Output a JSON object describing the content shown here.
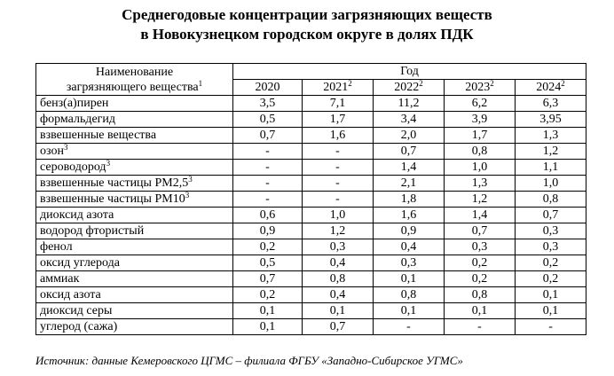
{
  "title": {
    "line1": "Среднегодовые концентрации загрязняющих веществ",
    "line2": "в Новокузнецком городском округе в долях ПДК"
  },
  "header": {
    "name_line1": "Наименование",
    "name_line2": "загрязняющего вещества",
    "name_sup": "1",
    "year_group": "Год",
    "years": [
      {
        "label": "2020",
        "sup": ""
      },
      {
        "label": "2021",
        "sup": "2"
      },
      {
        "label": "2022",
        "sup": "2"
      },
      {
        "label": "2023",
        "sup": "2"
      },
      {
        "label": "2024",
        "sup": "2"
      }
    ]
  },
  "rows": [
    {
      "name": "бенз(а)пирен",
      "sup": "",
      "values": [
        "3,5",
        "7,1",
        "11,2",
        "6,2",
        "6,3"
      ]
    },
    {
      "name": "формальдегид",
      "sup": "",
      "values": [
        "0,5",
        "1,7",
        "3,4",
        "3,9",
        "3,95"
      ]
    },
    {
      "name": "взвешенные вещества",
      "sup": "",
      "values": [
        "0,7",
        "1,6",
        "2,0",
        "1,7",
        "1,3"
      ]
    },
    {
      "name": "озон",
      "sup": "3",
      "values": [
        "-",
        "-",
        "0,7",
        "0,8",
        "1,2"
      ]
    },
    {
      "name": "сероводород",
      "sup": "3",
      "values": [
        "-",
        "-",
        "1,4",
        "1,0",
        "1,1"
      ]
    },
    {
      "name": "взвешенные частицы РМ2,5",
      "sup": "3",
      "values": [
        "-",
        "-",
        "2,1",
        "1,3",
        "1,0"
      ]
    },
    {
      "name": "взвешенные частицы РМ10",
      "sup": "3",
      "values": [
        "-",
        "-",
        "1,8",
        "1,2",
        "0,8"
      ]
    },
    {
      "name": "диоксид азота",
      "sup": "",
      "values": [
        "0,6",
        "1,0",
        "1,6",
        "1,4",
        "0,7"
      ]
    },
    {
      "name": "водород фтористый",
      "sup": "",
      "values": [
        "0,9",
        "1,2",
        "0,9",
        "0,7",
        "0,3"
      ]
    },
    {
      "name": "фенол",
      "sup": "",
      "values": [
        "0,2",
        "0,3",
        "0,4",
        "0,3",
        "0,3"
      ]
    },
    {
      "name": "оксид углерода",
      "sup": "",
      "values": [
        "0,5",
        "0,4",
        "0,3",
        "0,2",
        "0,2"
      ]
    },
    {
      "name": "аммиак",
      "sup": "",
      "values": [
        "0,7",
        "0,8",
        "0,1",
        "0,2",
        "0,2"
      ]
    },
    {
      "name": "оксид азота",
      "sup": "",
      "values": [
        "0,2",
        "0,4",
        "0,8",
        "0,8",
        "0,1"
      ]
    },
    {
      "name": "диоксид серы",
      "sup": "",
      "values": [
        "0,1",
        "0,1",
        "0,1",
        "0,1",
        "0,1"
      ]
    },
    {
      "name": "углерод (сажа)",
      "sup": "",
      "values": [
        "0,1",
        "0,7",
        "-",
        "-",
        "-"
      ]
    }
  ],
  "source": "Источник: данные Кемеровского ЦГМС – филиала ФГБУ «Западно-Сибирское УГМС»"
}
